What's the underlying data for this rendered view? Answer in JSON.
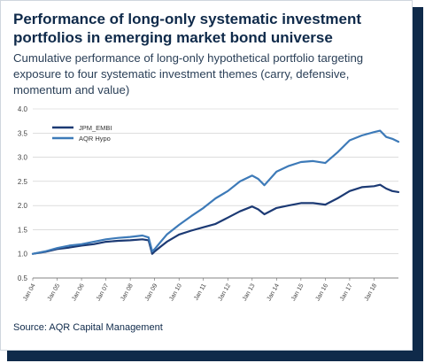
{
  "header": {
    "title": "Performance of long-only systematic investment portfolios in emerging market bond universe",
    "subtitle": "Cumulative performance of long-only hypothetical portfolio targeting exposure to four systematic investment themes (carry, defensive, momentum and value)"
  },
  "footer": {
    "source": "Source: AQR Capital Management"
  },
  "colors": {
    "dark_navy": "#0f2a4a",
    "series_dark": "#1c3a74",
    "series_light": "#3d7ab8"
  },
  "chart_data": {
    "type": "line",
    "title": "",
    "xlabel": "",
    "ylabel": "",
    "ylim": [
      0.5,
      4.0
    ],
    "yticks": [
      "0.5",
      "1.0",
      "1.5",
      "2.0",
      "2.5",
      "3.0",
      "3.5",
      "4.0"
    ],
    "xticks": [
      "Jan 04",
      "Jan 05",
      "Jan 06",
      "Jan 07",
      "Jan 08",
      "Jan 09",
      "Jan 10",
      "Jan 11",
      "Jan 12",
      "Jan 13",
      "Jan 14",
      "Jan 15",
      "Jan 16",
      "Jan 17",
      "Jan 18"
    ],
    "grid": "horizontal",
    "legend_position": "top-left",
    "x": [
      2004.0,
      2004.5,
      2005.0,
      2005.5,
      2006.0,
      2006.5,
      2007.0,
      2007.5,
      2008.0,
      2008.5,
      2008.75,
      2008.9,
      2009.0,
      2009.25,
      2009.5,
      2010.0,
      2010.5,
      2011.0,
      2011.5,
      2012.0,
      2012.5,
      2013.0,
      2013.25,
      2013.5,
      2014.0,
      2014.5,
      2015.0,
      2015.5,
      2016.0,
      2016.5,
      2017.0,
      2017.5,
      2018.0,
      2018.25,
      2018.5,
      2018.75,
      2019.0
    ],
    "series": [
      {
        "name": "JPM_EMBI",
        "color": "#1c3a74",
        "values": [
          1.0,
          1.04,
          1.1,
          1.13,
          1.17,
          1.2,
          1.25,
          1.27,
          1.28,
          1.3,
          1.28,
          1.0,
          1.05,
          1.15,
          1.25,
          1.4,
          1.48,
          1.55,
          1.62,
          1.75,
          1.88,
          1.98,
          1.92,
          1.82,
          1.95,
          2.0,
          2.05,
          2.05,
          2.02,
          2.15,
          2.3,
          2.38,
          2.4,
          2.43,
          2.35,
          2.3,
          2.28
        ]
      },
      {
        "name": "AQR Hypo",
        "color": "#3d7ab8",
        "values": [
          1.0,
          1.05,
          1.12,
          1.17,
          1.2,
          1.25,
          1.3,
          1.33,
          1.35,
          1.38,
          1.34,
          1.05,
          1.1,
          1.25,
          1.4,
          1.6,
          1.78,
          1.95,
          2.15,
          2.3,
          2.5,
          2.62,
          2.55,
          2.42,
          2.7,
          2.82,
          2.9,
          2.92,
          2.88,
          3.1,
          3.35,
          3.45,
          3.52,
          3.55,
          3.42,
          3.38,
          3.32
        ]
      }
    ]
  }
}
